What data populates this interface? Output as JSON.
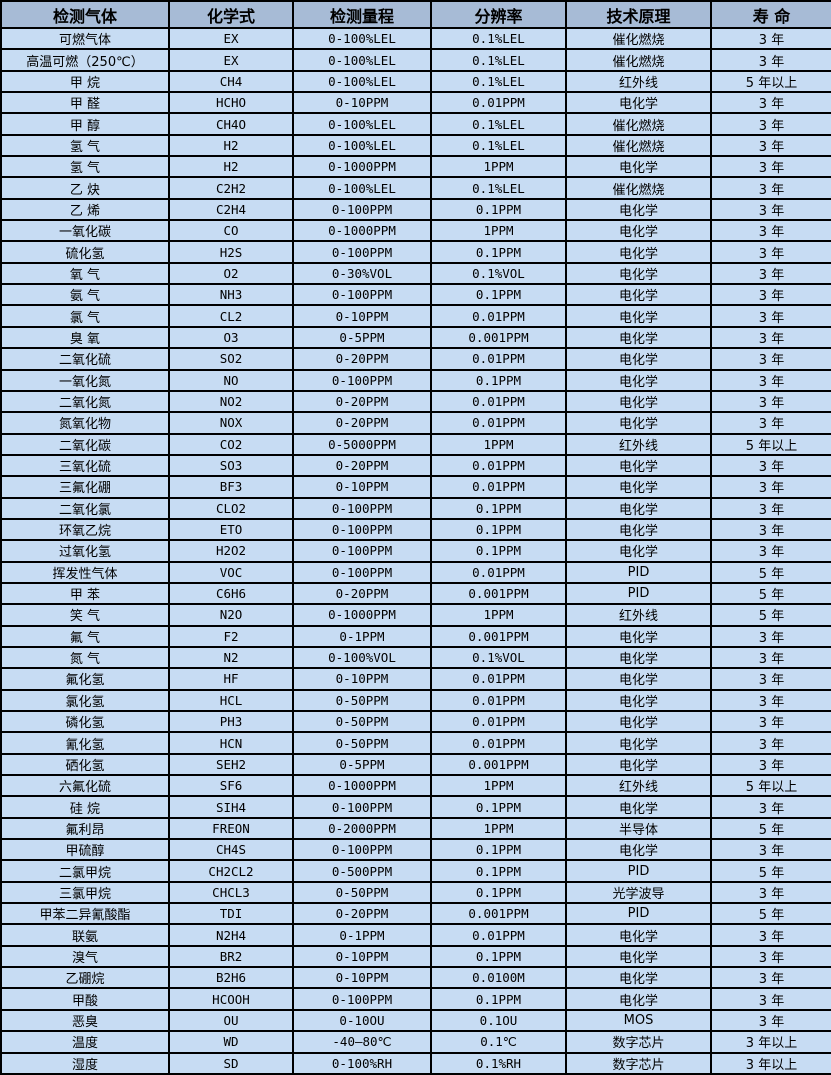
{
  "colors": {
    "header_bg": "#a7bbd6",
    "row_bg": "#c7dcf3",
    "border": "#000000",
    "text": "#000000"
  },
  "table": {
    "columns": [
      "检测气体",
      "化学式",
      "检测量程",
      "分辨率",
      "技术原理",
      "寿 命"
    ],
    "rows": [
      [
        "可燃气体",
        "EX",
        "0-100%LEL",
        "0.1%LEL",
        "催化燃烧",
        "3 年"
      ],
      [
        "高温可燃（250℃）",
        "EX",
        "0-100%LEL",
        "0.1%LEL",
        "催化燃烧",
        "3 年"
      ],
      [
        "甲 烷",
        "CH4",
        "0-100%LEL",
        "0.1%LEL",
        "红外线",
        "5 年以上"
      ],
      [
        "甲 醛",
        "HCHO",
        "0-10PPM",
        "0.01PPM",
        "电化学",
        "3 年"
      ],
      [
        "甲 醇",
        "CH4O",
        "0-100%LEL",
        "0.1%LEL",
        "催化燃烧",
        "3 年"
      ],
      [
        "氢 气",
        "H2",
        "0-100%LEL",
        "0.1%LEL",
        "催化燃烧",
        "3 年"
      ],
      [
        "氢 气",
        "H2",
        "0-1000PPM",
        "1PPM",
        "电化学",
        "3 年"
      ],
      [
        "乙 炔",
        "C2H2",
        "0-100%LEL",
        "0.1%LEL",
        "催化燃烧",
        "3 年"
      ],
      [
        "乙 烯",
        "C2H4",
        "0-100PPM",
        "0.1PPM",
        "电化学",
        "3 年"
      ],
      [
        "一氧化碳",
        "CO",
        "0-1000PPM",
        "1PPM",
        "电化学",
        "3 年"
      ],
      [
        "硫化氢",
        "H2S",
        "0-100PPM",
        "0.1PPM",
        "电化学",
        "3 年"
      ],
      [
        "氧 气",
        "O2",
        "0-30%VOL",
        "0.1%VOL",
        "电化学",
        "3 年"
      ],
      [
        "氨 气",
        "NH3",
        "0-100PPM",
        "0.1PPM",
        "电化学",
        "3 年"
      ],
      [
        "氯 气",
        "CL2",
        "0-10PPM",
        "0.01PPM",
        "电化学",
        "3 年"
      ],
      [
        "臭 氧",
        "O3",
        "0-5PPM",
        "0.001PPM",
        "电化学",
        "3 年"
      ],
      [
        "二氧化硫",
        "SO2",
        "0-20PPM",
        "0.01PPM",
        "电化学",
        "3 年"
      ],
      [
        "一氧化氮",
        "NO",
        "0-100PPM",
        "0.1PPM",
        "电化学",
        "3 年"
      ],
      [
        "二氧化氮",
        "NO2",
        "0-20PPM",
        "0.01PPM",
        "电化学",
        "3 年"
      ],
      [
        "氮氧化物",
        "NOX",
        "0-20PPM",
        "0.01PPM",
        "电化学",
        "3 年"
      ],
      [
        "二氧化碳",
        "CO2",
        "0-5000PPM",
        "1PPM",
        "红外线",
        "5 年以上"
      ],
      [
        "三氧化硫",
        "SO3",
        "0-20PPM",
        "0.01PPM",
        "电化学",
        "3 年"
      ],
      [
        "三氟化硼",
        "BF3",
        "0-10PPM",
        "0.01PPM",
        "电化学",
        "3 年"
      ],
      [
        "二氧化氯",
        "CLO2",
        "0-100PPM",
        "0.1PPM",
        "电化学",
        "3 年"
      ],
      [
        "环氧乙烷",
        "ETO",
        "0-100PPM",
        "0.1PPM",
        "电化学",
        "3 年"
      ],
      [
        "过氧化氢",
        "H2O2",
        "0-100PPM",
        "0.1PPM",
        "电化学",
        "3 年"
      ],
      [
        "挥发性气体",
        "VOC",
        "0-100PPM",
        "0.01PPM",
        "PID",
        "5 年"
      ],
      [
        "甲 苯",
        "C6H6",
        "0-20PPM",
        "0.001PPM",
        "PID",
        "5 年"
      ],
      [
        "笑 气",
        "N2O",
        "0-1000PPM",
        "1PPM",
        "红外线",
        "5 年"
      ],
      [
        "氟 气",
        "F2",
        "0-1PPM",
        "0.001PPM",
        "电化学",
        "3 年"
      ],
      [
        "氮 气",
        "N2",
        "0-100%VOL",
        "0.1%VOL",
        "电化学",
        "3 年"
      ],
      [
        "氟化氢",
        "HF",
        "0-10PPM",
        "0.01PPM",
        "电化学",
        "3 年"
      ],
      [
        "氯化氢",
        "HCL",
        "0-50PPM",
        "0.01PPM",
        "电化学",
        "3 年"
      ],
      [
        "磷化氢",
        "PH3",
        "0-50PPM",
        "0.01PPM",
        "电化学",
        "3 年"
      ],
      [
        "氰化氢",
        "HCN",
        "0-50PPM",
        "0.01PPM",
        "电化学",
        "3 年"
      ],
      [
        "硒化氢",
        "SEH2",
        "0-5PPM",
        "0.001PPM",
        "电化学",
        "3 年"
      ],
      [
        "六氟化硫",
        "SF6",
        "0-1000PPM",
        "1PPM",
        "红外线",
        "5 年以上"
      ],
      [
        "硅 烷",
        "SIH4",
        "0-100PPM",
        "0.1PPM",
        "电化学",
        "3 年"
      ],
      [
        "氟利昂",
        "FREON",
        "0-2000PPM",
        "1PPM",
        "半导体",
        "5 年"
      ],
      [
        "甲硫醇",
        "CH4S",
        "0-100PPM",
        "0.1PPM",
        "电化学",
        "3 年"
      ],
      [
        "二氯甲烷",
        "CH2CL2",
        "0-500PPM",
        "0.1PPM",
        "PID",
        "5 年"
      ],
      [
        "三氯甲烷",
        "CHCL3",
        "0-50PPM",
        "0.1PPM",
        "光学波导",
        "3 年"
      ],
      [
        "甲苯二异氰酸酯",
        "TDI",
        "0-20PPM",
        "0.001PPM",
        "PID",
        "5 年"
      ],
      [
        "联氨",
        "N2H4",
        "0-1PPM",
        "0.01PPM",
        "电化学",
        "3 年"
      ],
      [
        "溴气",
        "BR2",
        "0-10PPM",
        "0.1PPM",
        "电化学",
        "3 年"
      ],
      [
        "乙硼烷",
        "B2H6",
        "0-10PPM",
        "0.0100M",
        "电化学",
        "3 年"
      ],
      [
        "甲酸",
        "HCOOH",
        "0-100PPM",
        "0.1PPM",
        "电化学",
        "3 年"
      ],
      [
        "恶臭",
        "OU",
        "0-10OU",
        "0.1OU",
        "MOS",
        "3 年"
      ],
      [
        "温度",
        "WD",
        "-40—80℃",
        "0.1℃",
        "数字芯片",
        "3 年以上"
      ],
      [
        "湿度",
        "SD",
        "0-100%RH",
        "0.1%RH",
        "数字芯片",
        "3 年以上"
      ]
    ]
  }
}
